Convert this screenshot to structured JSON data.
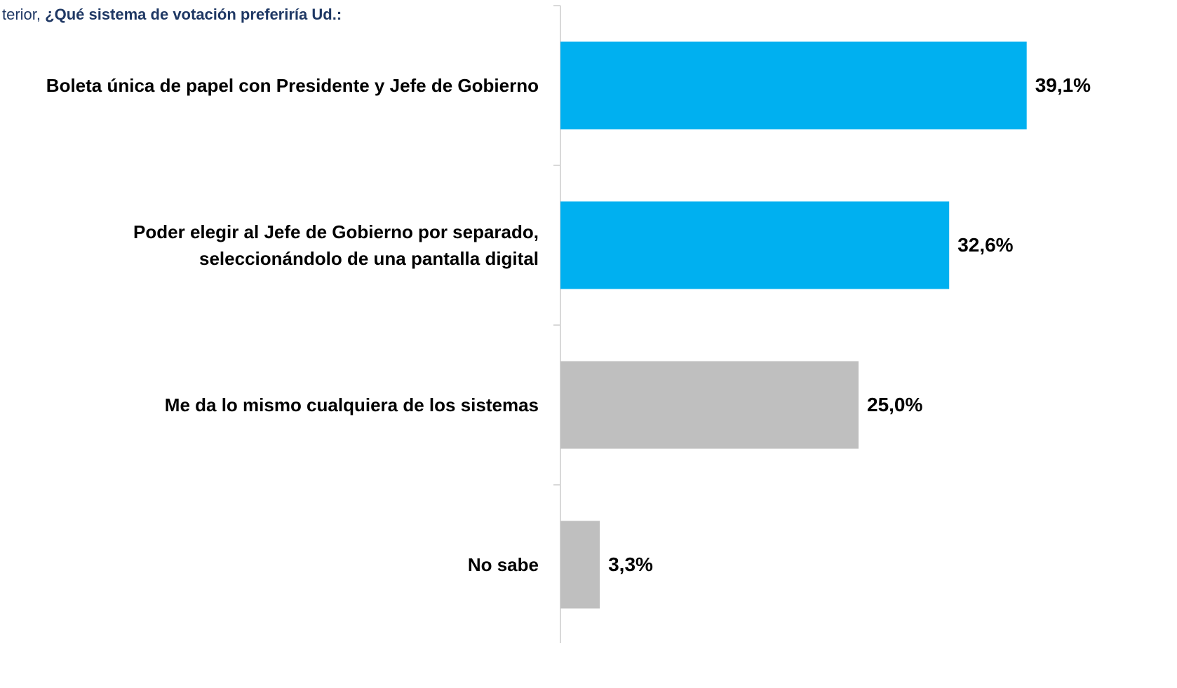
{
  "chart_data": {
    "type": "bar",
    "orientation": "horizontal",
    "title": [
      "terior, ",
      "¿Qué sistema de votación preferiría Ud.:"
    ],
    "categories": [
      "Boleta única de papel con Presidente y Jefe de Gobierno",
      "Poder elegir al Jefe de Gobierno por separado,\nseleccionándolo de una pantalla digital",
      "Me da lo mismo cualquiera de los sistemas",
      "No sabe"
    ],
    "values": [
      39.1,
      32.6,
      25.0,
      3.3
    ],
    "value_labels": [
      "39,1%",
      "32,6%",
      "25,0%",
      "3,3%"
    ],
    "colors": [
      "#00b0f0",
      "#00b0f0",
      "#bfbfbf",
      "#bfbfbf"
    ],
    "xlim": [
      0,
      45
    ]
  }
}
